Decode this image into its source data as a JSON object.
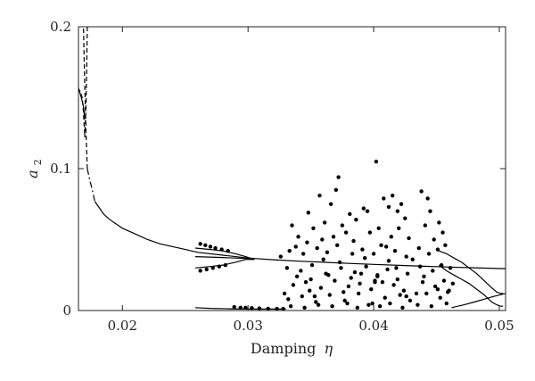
{
  "chart_data": {
    "type": "scatter",
    "xlabel": "Damping",
    "xlabel_symbol": "η",
    "ylabel_symbol": "a",
    "ylabel_subscript": "2",
    "xlim": [
      0.0165,
      0.0505
    ],
    "ylim": [
      0,
      0.2
    ],
    "x_ticks": [
      {
        "value": 0.02,
        "label": "0.02"
      },
      {
        "value": 0.03,
        "label": "0.03"
      },
      {
        "value": 0.04,
        "label": "0.04"
      },
      {
        "value": 0.05,
        "label": "0.05"
      }
    ],
    "y_ticks": [
      {
        "value": 0,
        "label": "0"
      },
      {
        "value": 0.1,
        "label": "0.1"
      },
      {
        "value": 0.2,
        "label": "0.2"
      }
    ],
    "grid": false,
    "legend": "none",
    "series": [
      {
        "kind": "solid-line",
        "x": [
          0.0178,
          0.0185,
          0.019,
          0.0195,
          0.02,
          0.021,
          0.022,
          0.023,
          0.024,
          0.025,
          0.026,
          0.028,
          0.03,
          0.032,
          0.034,
          0.036,
          0.038,
          0.04,
          0.042,
          0.044,
          0.046,
          0.048,
          0.0505
        ],
        "y": [
          0.077,
          0.068,
          0.064,
          0.061,
          0.058,
          0.054,
          0.05,
          0.047,
          0.045,
          0.043,
          0.041,
          0.039,
          0.037,
          0.0358,
          0.0348,
          0.034,
          0.0332,
          0.0325,
          0.0318,
          0.0312,
          0.0306,
          0.0301,
          0.0295
        ]
      },
      {
        "kind": "dash-dot-line",
        "x": [
          0.0172,
          0.0174,
          0.0176,
          0.0178
        ],
        "y": [
          0.1,
          0.092,
          0.085,
          0.077
        ]
      },
      {
        "kind": "dashed-line",
        "x": [
          0.0172,
          0.0171,
          0.017,
          0.0169
        ],
        "y": [
          0.1,
          0.125,
          0.16,
          0.2
        ]
      },
      {
        "kind": "dashed-line",
        "x": [
          0.0172,
          0.01715,
          0.0171,
          0.01705,
          0.017,
          0.0169,
          0.0168,
          0.0167,
          0.0166,
          0.0165
        ],
        "y": [
          0.2,
          0.17,
          0.145,
          0.132,
          0.122,
          0.14,
          0.15,
          0.153,
          0.155,
          0.156
        ]
      },
      {
        "kind": "solid-line",
        "x": [
          0.0165,
          0.0167,
          0.0169,
          0.017
        ],
        "y": [
          0.157,
          0.151,
          0.144,
          0.135
        ]
      },
      {
        "kind": "solid-line",
        "x": [
          0.0258,
          0.027,
          0.028,
          0.029,
          0.0298,
          0.0305
        ],
        "y": [
          0.044,
          0.043,
          0.042,
          0.04,
          0.038,
          0.036
        ]
      },
      {
        "kind": "solid-line",
        "x": [
          0.0258,
          0.027,
          0.028,
          0.029,
          0.0298,
          0.0305
        ],
        "y": [
          0.03,
          0.031,
          0.032,
          0.034,
          0.036,
          0.036
        ]
      },
      {
        "kind": "solid-line",
        "x": [
          0.0258,
          0.0275,
          0.029,
          0.0305
        ],
        "y": [
          0.038,
          0.0375,
          0.037,
          0.0365
        ]
      },
      {
        "kind": "solid-line",
        "x": [
          0.0258,
          0.027,
          0.0285,
          0.03,
          0.0315,
          0.033
        ],
        "y": [
          0.002,
          0.0015,
          0.0012,
          0.001,
          0.001,
          0.001
        ]
      },
      {
        "kind": "solid-line",
        "x": [
          0.0452,
          0.0458,
          0.0464,
          0.047,
          0.0476,
          0.0482,
          0.0488,
          0.0494,
          0.0498,
          0.0501,
          0.0503
        ],
        "y": [
          0.032,
          0.028,
          0.025,
          0.022,
          0.019,
          0.015,
          0.011,
          0.006,
          0.004,
          0.003,
          0.003
        ]
      },
      {
        "kind": "solid-line",
        "x": [
          0.0452,
          0.0458,
          0.0464,
          0.047,
          0.0476,
          0.0482,
          0.0488,
          0.0494,
          0.0498,
          0.0501,
          0.0503
        ],
        "y": [
          0.042,
          0.04,
          0.037,
          0.034,
          0.03,
          0.026,
          0.021,
          0.016,
          0.013,
          0.012,
          0.012
        ]
      },
      {
        "kind": "solid-line",
        "x": [
          0.0462,
          0.0472,
          0.048,
          0.0488,
          0.0496,
          0.0505
        ],
        "y": [
          0.002,
          0.004,
          0.006,
          0.008,
          0.01,
          0.012
        ]
      },
      {
        "kind": "points",
        "x": [
          0.0335,
          0.0348,
          0.0357,
          0.0366,
          0.0372,
          0.0381,
          0.0392,
          0.0402,
          0.0408,
          0.0415,
          0.0422,
          0.0438,
          0.0443,
          0.034,
          0.0352,
          0.0361,
          0.037,
          0.0378,
          0.0386,
          0.0395,
          0.0404,
          0.0412,
          0.0419,
          0.0425,
          0.0445,
          0.0452,
          0.0338,
          0.0347,
          0.0359,
          0.0368,
          0.0375,
          0.0384,
          0.0397,
          0.0406,
          0.0414,
          0.042,
          0.0428,
          0.0441,
          0.0448,
          0.0455,
          0.0333,
          0.0344,
          0.0355,
          0.0363,
          0.0371,
          0.0383,
          0.0391,
          0.04,
          0.041,
          0.0417,
          0.0426,
          0.0436,
          0.0444,
          0.0451,
          0.0457,
          0.0331,
          0.0342,
          0.0351,
          0.0362,
          0.0374,
          0.0385,
          0.0394,
          0.0403,
          0.0411,
          0.0418,
          0.0427,
          0.0437,
          0.0447,
          0.0454,
          0.0461,
          0.0336,
          0.0346,
          0.0358,
          0.0369,
          0.038,
          0.0389,
          0.0398,
          0.0407,
          0.0416,
          0.0424,
          0.0439,
          0.0449,
          0.0456,
          0.0463,
          0.0332,
          0.0343,
          0.0354,
          0.0365,
          0.0377,
          0.0388,
          0.0399,
          0.0409,
          0.0421,
          0.0429,
          0.0442,
          0.0453,
          0.0459,
          0.0334,
          0.0345,
          0.0356,
          0.0367,
          0.0379,
          0.0387,
          0.0396,
          0.0405,
          0.0413,
          0.0423,
          0.0435,
          0.0446,
          0.0458,
          0.0339,
          0.035,
          0.036,
          0.0373,
          0.0382,
          0.0393,
          0.0401,
          0.0412,
          0.0419,
          0.0431,
          0.044,
          0.0326,
          0.0329,
          0.0349,
          0.0353,
          0.0364,
          0.0376,
          0.039,
          0.0403,
          0.0426,
          0.0434,
          0.0451,
          0.046,
          0.0262,
          0.0266,
          0.027,
          0.0274,
          0.0279,
          0.0284,
          0.0262,
          0.0267,
          0.0272,
          0.0277,
          0.0282,
          0.0289,
          0.0294,
          0.0298,
          0.0303,
          0.0309,
          0.0316,
          0.0323,
          0.0328,
          0.0401
        ],
        "y": [
          0.06,
          0.069,
          0.081,
          0.075,
          0.094,
          0.068,
          0.072,
          0.105,
          0.079,
          0.081,
          0.075,
          0.084,
          0.079,
          0.052,
          0.058,
          0.062,
          0.085,
          0.055,
          0.064,
          0.07,
          0.058,
          0.073,
          0.07,
          0.065,
          0.07,
          0.062,
          0.045,
          0.048,
          0.05,
          0.052,
          0.06,
          0.049,
          0.055,
          0.046,
          0.052,
          0.058,
          0.051,
          0.06,
          0.05,
          0.055,
          0.042,
          0.04,
          0.044,
          0.041,
          0.046,
          0.04,
          0.043,
          0.04,
          0.045,
          0.042,
          0.038,
          0.044,
          0.04,
          0.043,
          0.046,
          0.03,
          0.028,
          0.032,
          0.026,
          0.03,
          0.027,
          0.031,
          0.025,
          0.029,
          0.03,
          0.026,
          0.031,
          0.028,
          0.032,
          0.03,
          0.018,
          0.02,
          0.016,
          0.021,
          0.017,
          0.019,
          0.015,
          0.02,
          0.018,
          0.014,
          0.02,
          0.017,
          0.021,
          0.019,
          0.008,
          0.01,
          0.006,
          0.011,
          0.007,
          0.012,
          0.005,
          0.009,
          0.011,
          0.007,
          0.012,
          0.009,
          0.013,
          0.003,
          0.002,
          0.004,
          0.003,
          0.005,
          0.002,
          0.004,
          0.003,
          0.005,
          0.002,
          0.004,
          0.003,
          0.005,
          0.024,
          0.022,
          0.036,
          0.034,
          0.023,
          0.037,
          0.021,
          0.035,
          0.022,
          0.036,
          0.024,
          0.038,
          0.012,
          0.014,
          0.01,
          0.025,
          0.013,
          0.026,
          0.024,
          0.01,
          0.012,
          0.015,
          0.014,
          0.047,
          0.046,
          0.045,
          0.044,
          0.043,
          0.042,
          0.028,
          0.029,
          0.03,
          0.031,
          0.032,
          0.0025,
          0.002,
          0.002,
          0.0018,
          0.0015,
          0.0013,
          0.0012,
          0.0012,
          0.02
        ]
      }
    ]
  }
}
